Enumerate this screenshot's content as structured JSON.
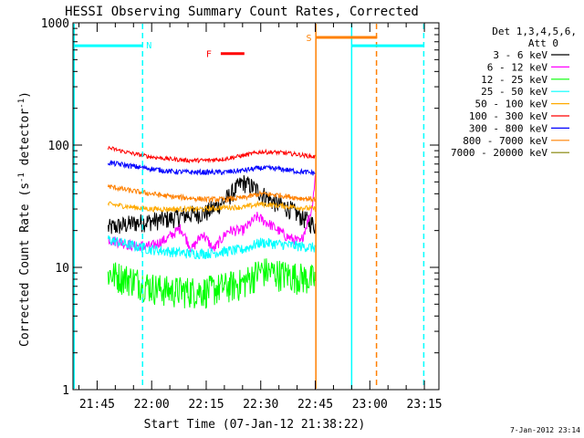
{
  "chart_data": {
    "type": "line",
    "title": "HESSI Observing Summary Count Rates, Corrected",
    "xlabel": "Start Time (07-Jan-12 21:38:22)",
    "ylabel_main": "Corrected Count Rate (s",
    "ylabel_exp1": "-1",
    "ylabel_mid": " detector",
    "ylabel_exp2": "-1",
    "ylabel_end": ")",
    "yscale": "log",
    "ylim": [
      1,
      1000
    ],
    "xlim": [
      "21:38:22",
      "23:19:00"
    ],
    "xticks": [
      "21:45",
      "22:00",
      "22:15",
      "22:30",
      "22:45",
      "23:00",
      "23:15"
    ],
    "yticks": [
      "1",
      "10",
      "100",
      "1000"
    ],
    "legend_header": [
      "Det 1,3,4,5,6,",
      "Att 0"
    ],
    "timestamp": "7-Jan-2012 23:14",
    "data_window": [
      "21:47:30",
      "22:45:30"
    ],
    "series": [
      {
        "name": "3 - 6 keV",
        "color": "#000000",
        "points": [
          [
            "21:48",
            21
          ],
          [
            "21:55",
            23
          ],
          [
            "22:00",
            24
          ],
          [
            "22:05",
            25
          ],
          [
            "22:10",
            27
          ],
          [
            "22:15",
            28
          ],
          [
            "22:20",
            35
          ],
          [
            "22:25",
            50
          ],
          [
            "22:28",
            45
          ],
          [
            "22:33",
            35
          ],
          [
            "22:38",
            30
          ],
          [
            "22:42",
            25
          ],
          [
            "22:45",
            22
          ]
        ]
      },
      {
        "name": "6 - 12 keV",
        "color": "#ff00ff",
        "points": [
          [
            "21:48",
            17
          ],
          [
            "21:55",
            15
          ],
          [
            "22:00",
            15
          ],
          [
            "22:04",
            17
          ],
          [
            "22:08",
            21
          ],
          [
            "22:11",
            14
          ],
          [
            "22:14",
            19
          ],
          [
            "22:17",
            14
          ],
          [
            "22:21",
            20
          ],
          [
            "22:25",
            20
          ],
          [
            "22:29",
            26
          ],
          [
            "22:33",
            22
          ],
          [
            "22:37",
            18
          ],
          [
            "22:41",
            16
          ],
          [
            "22:44",
            30
          ],
          [
            "22:45",
            55
          ]
        ]
      },
      {
        "name": "12 - 25 keV",
        "color": "#00ff00",
        "points": [
          [
            "21:48",
            9
          ],
          [
            "21:55",
            8
          ],
          [
            "22:00",
            7
          ],
          [
            "22:05",
            6.5
          ],
          [
            "22:10",
            6.5
          ],
          [
            "22:15",
            6.5
          ],
          [
            "22:20",
            7
          ],
          [
            "22:25",
            7.5
          ],
          [
            "22:30",
            9.5
          ],
          [
            "22:35",
            9
          ],
          [
            "22:40",
            8.5
          ],
          [
            "22:45",
            8
          ]
        ]
      },
      {
        "name": "25 - 50 keV",
        "color": "#00ffff",
        "points": [
          [
            "21:48",
            17
          ],
          [
            "21:55",
            15
          ],
          [
            "22:00",
            14
          ],
          [
            "22:05",
            13.5
          ],
          [
            "22:10",
            13
          ],
          [
            "22:15",
            13
          ],
          [
            "22:20",
            13.5
          ],
          [
            "22:25",
            14
          ],
          [
            "22:30",
            16
          ],
          [
            "22:35",
            15.5
          ],
          [
            "22:40",
            15
          ],
          [
            "22:45",
            14.5
          ]
        ]
      },
      {
        "name": "50 - 100 keV",
        "color": "#ffaa00",
        "points": [
          [
            "21:48",
            33
          ],
          [
            "21:55",
            31
          ],
          [
            "22:00",
            30
          ],
          [
            "22:05",
            30
          ],
          [
            "22:10",
            30
          ],
          [
            "22:15",
            30
          ],
          [
            "22:20",
            31
          ],
          [
            "22:25",
            31
          ],
          [
            "22:30",
            33
          ],
          [
            "22:35",
            32
          ],
          [
            "22:40",
            31
          ],
          [
            "22:45",
            30
          ]
        ]
      },
      {
        "name": "100 - 300 keV",
        "color": "#ff0000",
        "points": [
          [
            "21:48",
            95
          ],
          [
            "21:55",
            85
          ],
          [
            "22:00",
            80
          ],
          [
            "22:05",
            77
          ],
          [
            "22:10",
            75
          ],
          [
            "22:15",
            75
          ],
          [
            "22:20",
            77
          ],
          [
            "22:25",
            82
          ],
          [
            "22:30",
            88
          ],
          [
            "22:35",
            87
          ],
          [
            "22:40",
            84
          ],
          [
            "22:45",
            80
          ]
        ]
      },
      {
        "name": "300 - 800 keV",
        "color": "#0000ff",
        "points": [
          [
            "21:48",
            72
          ],
          [
            "21:55",
            67
          ],
          [
            "22:00",
            64
          ],
          [
            "22:05",
            61
          ],
          [
            "22:10",
            60
          ],
          [
            "22:15",
            60
          ],
          [
            "22:20",
            60
          ],
          [
            "22:25",
            62
          ],
          [
            "22:30",
            65
          ],
          [
            "22:35",
            64
          ],
          [
            "22:40",
            61
          ],
          [
            "22:45",
            59
          ]
        ]
      },
      {
        "name": "800 - 7000 keV",
        "color": "#ff8000",
        "points": [
          [
            "21:48",
            46
          ],
          [
            "21:55",
            42
          ],
          [
            "22:00",
            40
          ],
          [
            "22:05",
            38
          ],
          [
            "22:10",
            37
          ],
          [
            "22:15",
            36
          ],
          [
            "22:20",
            36
          ],
          [
            "22:25",
            37
          ],
          [
            "22:30",
            40
          ],
          [
            "22:35",
            39
          ],
          [
            "22:40",
            37
          ],
          [
            "22:45",
            36
          ]
        ]
      },
      {
        "name": "7000 - 20000 keV",
        "color": "#808000",
        "points": []
      }
    ],
    "flag_bars": [
      {
        "label": "N",
        "color": "#00ffff",
        "start": "21:38:22",
        "end": "21:57:30",
        "level": 650
      },
      {
        "label": "F",
        "color": "#ff0000",
        "start": "22:19:00",
        "end": "22:25:30",
        "level": 560
      },
      {
        "label": "S",
        "color": "#ff8000",
        "start": "22:45:00",
        "end": "23:02:00",
        "level": 760
      },
      {
        "label": "",
        "color": "#00ffff",
        "start": "22:55:00",
        "end": "23:15:00",
        "level": 650
      }
    ],
    "vertical_lines": [
      {
        "time": "21:38:40",
        "color": "#00ffff",
        "style": "solid"
      },
      {
        "time": "21:57:30",
        "color": "#00ffff",
        "style": "dashed"
      },
      {
        "time": "22:45:10",
        "color": "#ff8000",
        "style": "solid"
      },
      {
        "time": "22:55:00",
        "color": "#00ffff",
        "style": "solid"
      },
      {
        "time": "23:01:50",
        "color": "#ff8000",
        "style": "dashed"
      },
      {
        "time": "23:14:50",
        "color": "#00ffff",
        "style": "dashed"
      }
    ]
  }
}
